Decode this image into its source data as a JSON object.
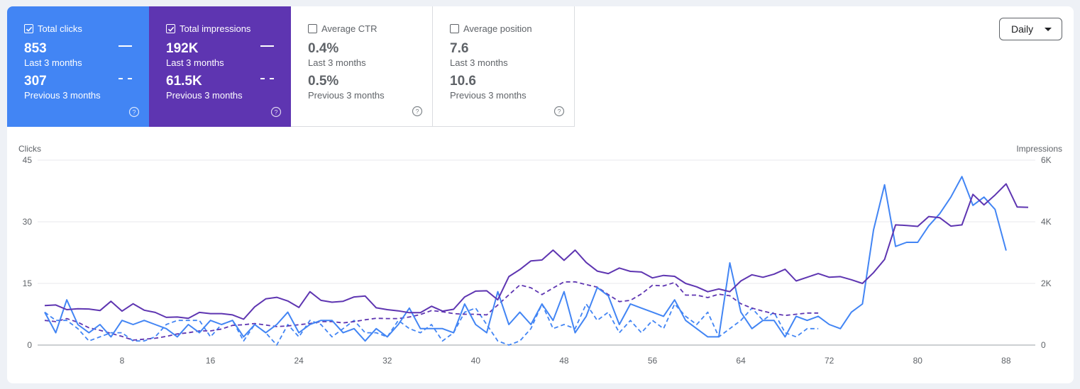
{
  "metrics": [
    {
      "key": "clicks",
      "label": "Total clicks",
      "checked": true,
      "value_current": "853",
      "label_current": "Last 3 months",
      "value_previous": "307",
      "label_previous": "Previous 3 months",
      "color": "#4285f4"
    },
    {
      "key": "impressions",
      "label": "Total impressions",
      "checked": true,
      "value_current": "192K",
      "label_current": "Last 3 months",
      "value_previous": "61.5K",
      "label_previous": "Previous 3 months",
      "color": "#5e35b1"
    },
    {
      "key": "ctr",
      "label": "Average CTR",
      "checked": false,
      "value_current": "0.4%",
      "label_current": "Last 3 months",
      "value_previous": "0.5%",
      "label_previous": "Previous 3 months"
    },
    {
      "key": "position",
      "label": "Average position",
      "checked": false,
      "value_current": "7.6",
      "label_current": "Last 3 months",
      "value_previous": "10.6",
      "label_previous": "Previous 3 months"
    }
  ],
  "icons": {
    "help": "help-circle-icon",
    "check": "checkmark-icon",
    "caret": "caret-down-icon"
  },
  "period_select": {
    "value": "Daily"
  },
  "chart_data": {
    "type": "line",
    "ylabel_left": "Clicks",
    "ylabel_right": "Impressions",
    "ylim_left": [
      0,
      45
    ],
    "ylim_right": [
      0,
      6000
    ],
    "y_ticks_left": [
      "0",
      "15",
      "30",
      "45"
    ],
    "y_ticks_right": [
      "0",
      "2K",
      "4K",
      "6K"
    ],
    "x_ticks": [
      8,
      16,
      24,
      32,
      40,
      48,
      56,
      64,
      72,
      80,
      88
    ],
    "xlim": [
      1,
      90
    ],
    "grid": true,
    "series": [
      {
        "name": "Total clicks",
        "axis": "left",
        "style": "solid",
        "color": "#4285f4",
        "values": [
          8,
          3,
          11,
          5,
          3,
          5,
          2,
          6,
          5,
          6,
          5,
          4,
          2,
          5,
          3,
          6,
          5,
          6,
          2,
          5,
          3,
          5,
          8,
          3,
          5,
          6,
          6,
          3,
          4,
          1,
          4,
          2,
          5,
          9,
          4,
          4,
          4,
          3,
          10,
          5,
          3,
          13,
          5,
          8,
          5,
          10,
          6,
          13,
          3,
          7,
          14,
          12,
          5,
          10,
          9,
          8,
          7,
          11,
          6,
          4,
          2,
          2,
          20,
          8,
          4,
          6,
          6,
          2,
          7,
          6,
          7,
          5,
          4,
          8,
          10,
          28,
          39,
          24,
          25,
          25,
          29,
          32,
          36,
          41,
          34,
          36,
          33,
          23
        ]
      },
      {
        "name": "Total impressions",
        "axis": "right",
        "style": "solid",
        "color": "#5e35b1",
        "values": [
          1280,
          1300,
          1150,
          1180,
          1170,
          1120,
          1420,
          1100,
          1340,
          1130,
          1060,
          900,
          910,
          870,
          1060,
          1020,
          1020,
          980,
          840,
          1240,
          1500,
          1550,
          1430,
          1220,
          1730,
          1450,
          1390,
          1420,
          1560,
          1590,
          1210,
          1150,
          1110,
          1050,
          1050,
          1260,
          1100,
          1160,
          1560,
          1750,
          1760,
          1470,
          2220,
          2450,
          2730,
          2760,
          3080,
          2750,
          3080,
          2680,
          2400,
          2320,
          2500,
          2390,
          2370,
          2180,
          2260,
          2230,
          2000,
          1890,
          1730,
          1820,
          1730,
          2080,
          2280,
          2200,
          2300,
          2460,
          2080,
          2200,
          2320,
          2200,
          2220,
          2120,
          2000,
          2350,
          2780,
          3900,
          3880,
          3850,
          4170,
          4130,
          3860,
          3900,
          4890,
          4550,
          4870,
          5230,
          4480,
          4470
        ]
      },
      {
        "name": "Clicks (previous period)",
        "axis": "left",
        "style": "dashed",
        "color": "#4285f4",
        "values": [
          8,
          6,
          6,
          4,
          1,
          2,
          3,
          3,
          1,
          1,
          2,
          5,
          6,
          6,
          6,
          2,
          5,
          6,
          1,
          5,
          3,
          0,
          5,
          2,
          6,
          5,
          2,
          4,
          6,
          3,
          3,
          2,
          6,
          4,
          3,
          5,
          1,
          3,
          8,
          9,
          5,
          1,
          0,
          1,
          4,
          10,
          4,
          5,
          4,
          10,
          6,
          8,
          3,
          6,
          3,
          6,
          4,
          10,
          7,
          5,
          8,
          2,
          4,
          6,
          9,
          6,
          8,
          3,
          2,
          4,
          4
        ]
      },
      {
        "name": "Impressions (previous period)",
        "axis": "right",
        "style": "dashed",
        "color": "#5e35b1",
        "values": [
          800,
          760,
          860,
          740,
          560,
          480,
          380,
          280,
          160,
          190,
          220,
          280,
          360,
          400,
          460,
          460,
          520,
          640,
          660,
          700,
          650,
          600,
          620,
          660,
          700,
          760,
          760,
          720,
          760,
          820,
          870,
          860,
          860,
          910,
          990,
          1120,
          1080,
          1020,
          1000,
          1000,
          980,
          1300,
          1630,
          1950,
          1860,
          1640,
          1850,
          2050,
          2050,
          1960,
          1880,
          1640,
          1410,
          1450,
          1660,
          1940,
          1920,
          2030,
          1620,
          1620,
          1540,
          1650,
          1600,
          1340,
          1200,
          1100,
          1020,
          960,
          1000,
          1040,
          1040
        ]
      }
    ]
  }
}
